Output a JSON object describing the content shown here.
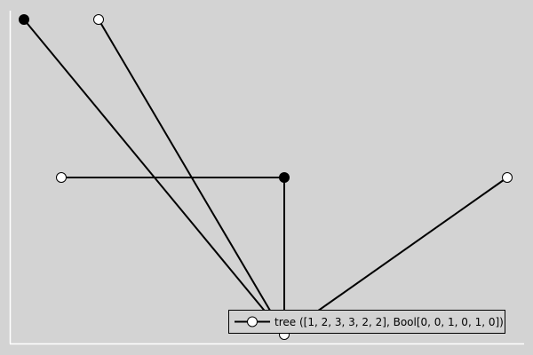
{
  "tree": {
    "parents": [
      1,
      2,
      3,
      3,
      2,
      2
    ],
    "flags": [
      0,
      0,
      1,
      0,
      1,
      0
    ],
    "edges": [
      {
        "from": 3,
        "to": 1
      },
      {
        "from": 3,
        "to": 2
      },
      {
        "from": 1,
        "to": 4
      },
      {
        "from": 1,
        "to": 5
      },
      {
        "from": 1,
        "to": 6
      }
    ],
    "colors": {
      "flag_on": "#000000",
      "flag_off": "#ffffff",
      "stroke": "#000000",
      "background": "#d3d3d3",
      "axis": "#ffffff"
    }
  },
  "legend": {
    "label": "tree ([1, 2, 3, 3, 2, 2], Bool[0, 0, 1, 0, 1, 0])"
  }
}
